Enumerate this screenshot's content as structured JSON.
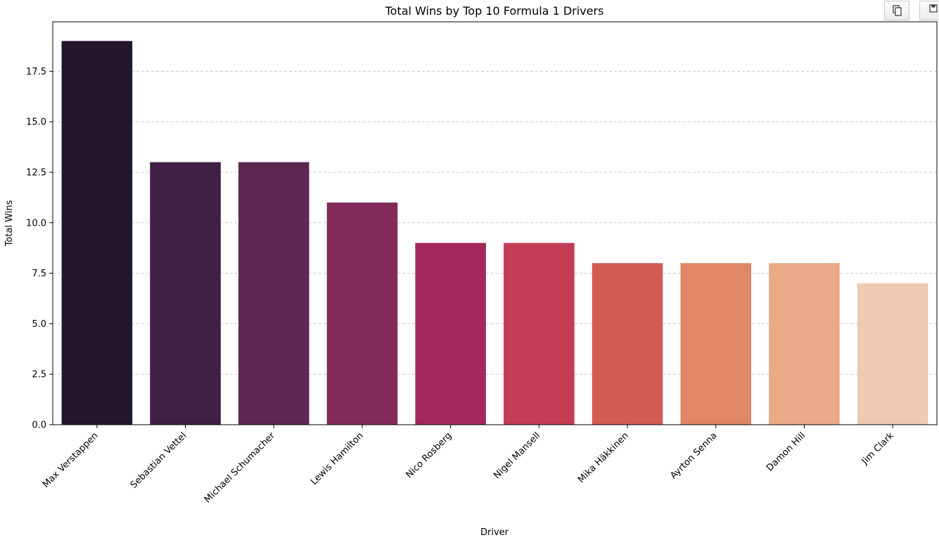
{
  "toolbar": {
    "copy_icon": "copy-icon",
    "save_icon": "floppy-disk-icon"
  },
  "chart_data": {
    "type": "bar",
    "title": "Total Wins by Top 10 Formula 1 Drivers",
    "xlabel": "Driver",
    "ylabel": "Total Wins",
    "categories": [
      "Max Verstappen",
      "Sebastian Vettel",
      "Michael Schumacher",
      "Lewis Hamilton",
      "Nico Rosberg",
      "Nigel Mansell",
      "Mika Häkkinen",
      "Ayrton Senna",
      "Damon Hill",
      "Jim Clark"
    ],
    "values": [
      19,
      13,
      13,
      11,
      9,
      9,
      8,
      8,
      8,
      7
    ],
    "colors": [
      "#23172d",
      "#3f1f43",
      "#5e2751",
      "#832a5a",
      "#a3295a",
      "#c33d56",
      "#d35b53",
      "#e08866",
      "#e9a886",
      "#eecab3"
    ],
    "ylim": [
      0,
      19.95
    ],
    "yticks": [
      0.0,
      2.5,
      5.0,
      7.5,
      10.0,
      12.5,
      15.0,
      17.5
    ],
    "ytick_labels": [
      "0.0",
      "2.5",
      "5.0",
      "7.5",
      "10.0",
      "12.5",
      "15.0",
      "17.5"
    ],
    "grid": "y-dashed",
    "legend": "none"
  }
}
